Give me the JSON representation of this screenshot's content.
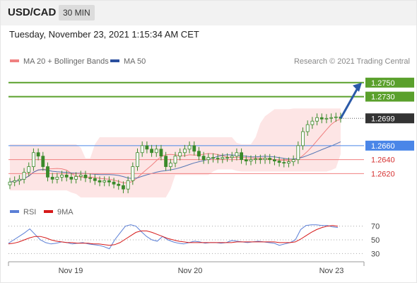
{
  "header": {
    "symbol": "USD/CAD",
    "timeframe": "30 MIN"
  },
  "datetime": "Tuesday, November 23, 2021 1:15:34 AM CET",
  "legend": [
    {
      "name": "MA 20 + Bollinger Bands",
      "color": "#f08080"
    },
    {
      "name": "MA 50",
      "color": "#2b4f9e"
    }
  ],
  "copyright": "Research © 2021 Trading Central",
  "colors": {
    "candle": "#3a8a2a",
    "resistance": "#5aa02c",
    "support": "#f08080",
    "pivot": "#4a86e8",
    "arrow": "#2b5aa8",
    "bollinger_fill": "#fde2e2",
    "last_price_label": "#333333",
    "rsi": "#5b7fd6",
    "rsi_ma": "#d61a1a"
  },
  "chart_data": [
    {
      "type": "candlestick",
      "panel": "price",
      "ylim": [
        1.258,
        1.277
      ],
      "levels": [
        {
          "value": 1.275,
          "label": "1.2750",
          "kind": "resistance"
        },
        {
          "value": 1.273,
          "label": "1.2730",
          "kind": "resistance"
        },
        {
          "value": 1.2699,
          "label": "1.2699",
          "kind": "last-price"
        },
        {
          "value": 1.266,
          "label": "1.2660",
          "kind": "pivot"
        },
        {
          "value": 1.264,
          "label": "1.2640",
          "kind": "support"
        },
        {
          "value": 1.262,
          "label": "1.2620",
          "kind": "support"
        }
      ],
      "close_series": [
        1.2608,
        1.261,
        1.2612,
        1.2622,
        1.263,
        1.265,
        1.2645,
        1.263,
        1.2615,
        1.2612,
        1.2615,
        1.2618,
        1.2615,
        1.2612,
        1.2616,
        1.2618,
        1.2614,
        1.2613,
        1.261,
        1.2608,
        1.261,
        1.2608,
        1.2605,
        1.2603,
        1.2598,
        1.261,
        1.263,
        1.265,
        1.266,
        1.2655,
        1.265,
        1.2655,
        1.2645,
        1.263,
        1.2635,
        1.2645,
        1.265,
        1.2655,
        1.266,
        1.2652,
        1.2645,
        1.264,
        1.2643,
        1.2642,
        1.2641,
        1.2643,
        1.2643,
        1.2645,
        1.265,
        1.264,
        1.2638,
        1.264,
        1.2641,
        1.264,
        1.2642,
        1.264,
        1.2638,
        1.2636,
        1.2635,
        1.2637,
        1.264,
        1.266,
        1.268,
        1.269,
        1.2695,
        1.27,
        1.2698,
        1.2699,
        1.27,
        1.2701,
        1.2699
      ],
      "arrow": {
        "from": 1.2699,
        "to": 1.275
      }
    },
    {
      "type": "line",
      "panel": "rsi",
      "ylim": [
        20,
        80
      ],
      "yticks": [
        "70",
        "50",
        "30"
      ],
      "xticks": [
        "Nov 19",
        "Nov 20",
        "Nov 23"
      ],
      "legend": [
        {
          "name": "RSI",
          "color": "#5b7fd6"
        },
        {
          "name": "9MA",
          "color": "#d61a1a"
        }
      ],
      "series": [
        {
          "name": "RSI",
          "values": [
            45,
            50,
            55,
            60,
            66,
            58,
            50,
            46,
            44,
            45,
            47,
            46,
            44,
            45,
            46,
            44,
            43,
            42,
            40,
            37,
            50,
            60,
            70,
            72,
            70,
            62,
            55,
            50,
            48,
            55,
            50,
            47,
            45,
            44,
            46,
            48,
            47,
            45,
            46,
            46,
            45,
            46,
            49,
            48,
            47,
            46,
            47,
            48,
            47,
            46,
            45,
            42,
            44,
            46,
            50,
            65,
            71,
            72,
            72,
            71,
            71,
            69,
            68
          ]
        },
        {
          "name": "9MA",
          "values": [
            44,
            45,
            47,
            50,
            53,
            55,
            55,
            53,
            50,
            48,
            47,
            46,
            46,
            45,
            45,
            45,
            44,
            44,
            43,
            42,
            43,
            46,
            51,
            56,
            61,
            63,
            63,
            61,
            58,
            55,
            52,
            50,
            48,
            47,
            46,
            46,
            46,
            46,
            46,
            46,
            46,
            46,
            46,
            47,
            47,
            47,
            47,
            47,
            47,
            47,
            47,
            46,
            46,
            46,
            47,
            51,
            56,
            61,
            65,
            68,
            70,
            71,
            70
          ]
        }
      ]
    }
  ]
}
